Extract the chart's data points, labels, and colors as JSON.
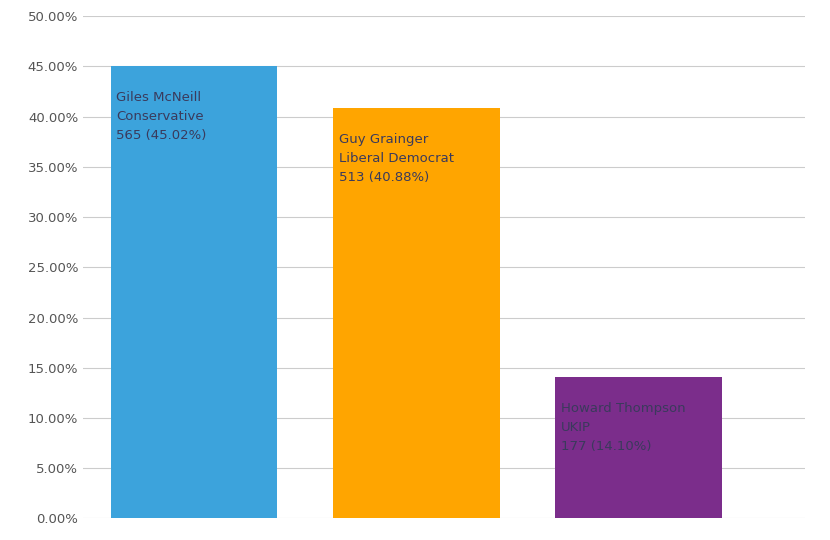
{
  "candidates": [
    "Giles McNeill\nConservative\n565 (45.02%)",
    "Guy Grainger\nLiberal Democrat\n513 (40.88%)",
    "Howard Thompson\nUKIP\n177 (14.10%)"
  ],
  "values": [
    45.02,
    40.88,
    14.1
  ],
  "bar_colors": [
    "#3CA3DC",
    "#FFA500",
    "#7B2D8B"
  ],
  "bar_positions": [
    1,
    3,
    5
  ],
  "bar_width": 1.5,
  "ylim": [
    0,
    50
  ],
  "ytick_vals": [
    0,
    5,
    10,
    15,
    20,
    25,
    30,
    35,
    40,
    45,
    50
  ],
  "background_color": "#FFFFFF",
  "text_color": "#3A3A5C",
  "grid_color": "#CCCCCC",
  "label_fontsize": 9.5,
  "tick_fontsize": 9.5,
  "xlim": [
    0,
    6.5
  ]
}
